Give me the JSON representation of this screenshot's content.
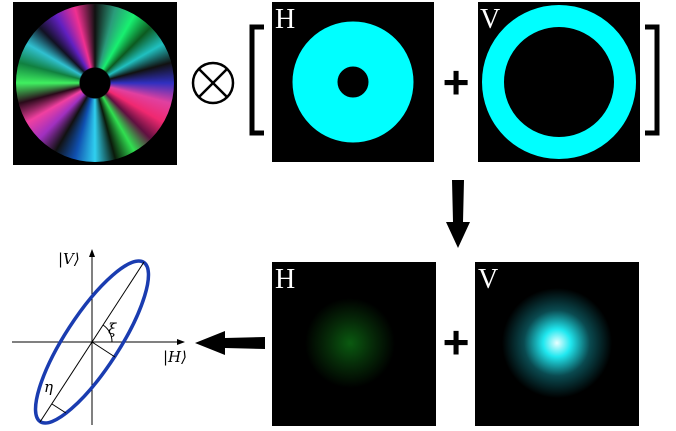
{
  "top": {
    "h_panel": {
      "label": "H"
    },
    "plus": "+",
    "v_panel": {
      "label": "V"
    }
  },
  "bottom": {
    "h_panel": {
      "label": "H"
    },
    "plus": "+",
    "v_panel": {
      "label": "V"
    }
  },
  "ellipse": {
    "v_axis": "|V⟩",
    "h_axis": "|H⟩",
    "xi": "ξ",
    "eta": "η"
  }
}
